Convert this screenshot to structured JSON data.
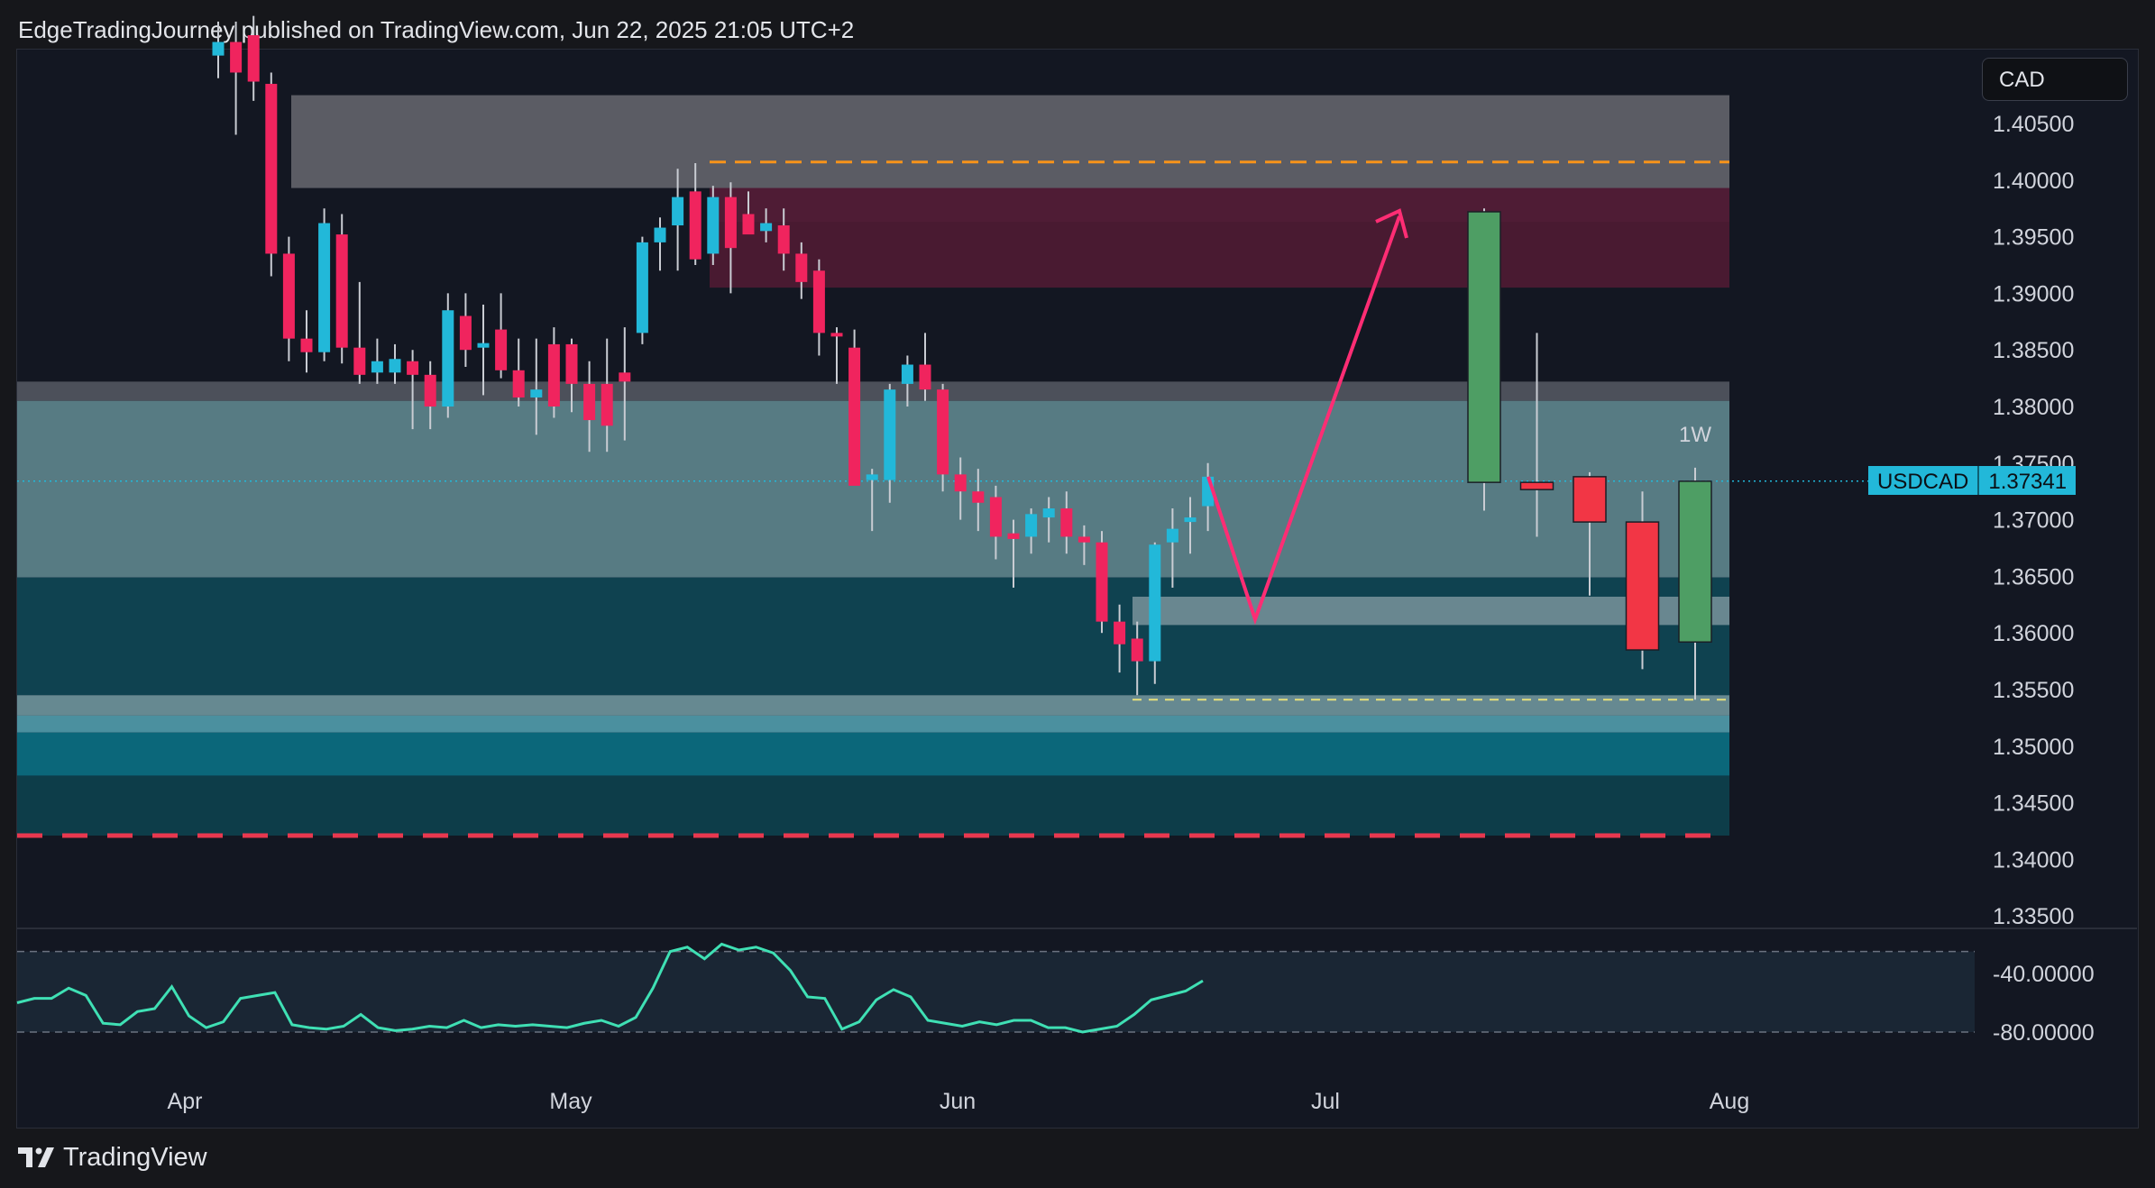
{
  "header": {
    "published": "EdgeTradingJourney published on TradingView.com, Jun 22, 2025 21:05 UTC+2"
  },
  "currency": "CAD",
  "price_label": {
    "symbol": "USDCAD",
    "value": "1.37341"
  },
  "timeframe_label": "1W",
  "footer": {
    "brand": "TradingView"
  },
  "colors": {
    "bull": "#22b8d9",
    "bear": "#f0245e",
    "weekly_bear": "#f23645",
    "weekly_bull": "#4e9e64",
    "arrow": "#ff2d74",
    "dash_orange": "#f7931a",
    "dash_yellow": "#e8e07a",
    "dash_red": "#e8384f"
  },
  "chart_data": [
    {
      "type": "candlestick",
      "symbol": "USDCAD",
      "y_ticks": [
        "1.40500",
        "1.40000",
        "1.39500",
        "1.39000",
        "1.38500",
        "1.38000",
        "1.37500",
        "1.37000",
        "1.36500",
        "1.36000",
        "1.35500",
        "1.35000",
        "1.34500",
        "1.34000",
        "1.33500"
      ],
      "x_ticks": [
        "Apr",
        "May",
        "Jun",
        "Jul",
        "Aug"
      ],
      "ylim": [
        1.3335,
        1.4116
      ],
      "zones": [
        {
          "name": "grey-supply",
          "y1": 1.4075,
          "y2": 1.3993,
          "color": "#5f6068"
        },
        {
          "name": "pink-zone",
          "y1": 1.3993,
          "y2": 1.3963,
          "color": "#8a4a66"
        },
        {
          "name": "maroon-zone",
          "y1": 1.3993,
          "y2": 1.3905,
          "color": "#4c1a33"
        },
        {
          "name": "thin-grey",
          "y1": 1.3822,
          "y2": 1.3805,
          "color": "#4f535e"
        },
        {
          "name": "teal-light",
          "y1": 1.3805,
          "y2": 1.3649,
          "color": "#5b8189"
        },
        {
          "name": "teal-dark",
          "y1": 1.3649,
          "y2": 1.3545,
          "color": "#0f4453"
        },
        {
          "name": "grey-inner",
          "y1": 1.3632,
          "y2": 1.3607,
          "color": "#6f8b93"
        },
        {
          "name": "light-strip",
          "y1": 1.3545,
          "y2": 1.3527,
          "color": "#6a8f98"
        },
        {
          "name": "blue-strip",
          "y1": 1.3527,
          "y2": 1.3512,
          "color": "#4e97a6"
        },
        {
          "name": "cyan-zone",
          "y1": 1.3512,
          "y2": 1.3474,
          "color": "#0b6b80"
        },
        {
          "name": "dark-teal",
          "y1": 1.3474,
          "y2": 1.3421,
          "color": "#0d3f4c"
        }
      ],
      "levels": [
        {
          "name": "orange-dash",
          "y": 1.4016,
          "color": "#f7931a"
        },
        {
          "name": "yellow-dash",
          "y": 1.3541,
          "color": "#e8e07a"
        },
        {
          "name": "red-dash",
          "y": 1.3421,
          "color": "#e8384f"
        },
        {
          "name": "current-price",
          "y": 1.37341,
          "color": "#22b8d9"
        }
      ],
      "daily_candles": [
        [
          1.411,
          1.414,
          1.409,
          1.4122
        ],
        [
          1.4122,
          1.414,
          1.404,
          1.4095
        ],
        [
          1.4128,
          1.4145,
          1.407,
          1.4087
        ],
        [
          1.4085,
          1.4095,
          1.3915,
          1.3935
        ],
        [
          1.3935,
          1.395,
          1.384,
          1.386
        ],
        [
          1.386,
          1.3885,
          1.383,
          1.3848
        ],
        [
          1.3848,
          1.3975,
          1.384,
          1.3962
        ],
        [
          1.3952,
          1.397,
          1.3838,
          1.3852
        ],
        [
          1.3852,
          1.391,
          1.382,
          1.3828
        ],
        [
          1.383,
          1.386,
          1.382,
          1.384
        ],
        [
          1.383,
          1.3855,
          1.382,
          1.3842
        ],
        [
          1.384,
          1.385,
          1.378,
          1.3828
        ],
        [
          1.3828,
          1.384,
          1.378,
          1.38
        ],
        [
          1.38,
          1.39,
          1.379,
          1.3885
        ],
        [
          1.388,
          1.39,
          1.3835,
          1.385
        ],
        [
          1.3852,
          1.389,
          1.381,
          1.3856
        ],
        [
          1.3868,
          1.39,
          1.3825,
          1.3832
        ],
        [
          1.3832,
          1.386,
          1.38,
          1.3808
        ],
        [
          1.3808,
          1.386,
          1.3775,
          1.3815
        ],
        [
          1.3855,
          1.387,
          1.379,
          1.38
        ],
        [
          1.3855,
          1.386,
          1.3795,
          1.382
        ],
        [
          1.382,
          1.384,
          1.376,
          1.3788
        ],
        [
          1.382,
          1.386,
          1.376,
          1.3783
        ],
        [
          1.383,
          1.387,
          1.377,
          1.3822
        ],
        [
          1.3865,
          1.395,
          1.3855,
          1.3945
        ],
        [
          1.3945,
          1.3967,
          1.392,
          1.3958
        ],
        [
          1.396,
          1.401,
          1.392,
          1.3985
        ],
        [
          1.399,
          1.4015,
          1.3925,
          1.393
        ],
        [
          1.3935,
          1.3995,
          1.3925,
          1.3985
        ],
        [
          1.3985,
          1.3998,
          1.39,
          1.394
        ],
        [
          1.397,
          1.399,
          1.3955,
          1.3952
        ],
        [
          1.3955,
          1.3975,
          1.3945,
          1.3962
        ],
        [
          1.396,
          1.3975,
          1.392,
          1.3935
        ],
        [
          1.3935,
          1.3945,
          1.3895,
          1.391
        ],
        [
          1.392,
          1.393,
          1.3845,
          1.3865
        ],
        [
          1.3865,
          1.387,
          1.382,
          1.3862
        ],
        [
          1.3852,
          1.3868,
          1.3775,
          1.373
        ],
        [
          1.3735,
          1.3745,
          1.369,
          1.374
        ],
        [
          1.3735,
          1.382,
          1.3715,
          1.3815
        ],
        [
          1.382,
          1.3845,
          1.38,
          1.3837
        ],
        [
          1.3837,
          1.3865,
          1.3805,
          1.3815
        ],
        [
          1.3815,
          1.382,
          1.3725,
          1.374
        ],
        [
          1.374,
          1.3755,
          1.37,
          1.3725
        ],
        [
          1.3725,
          1.3745,
          1.369,
          1.3715
        ],
        [
          1.372,
          1.373,
          1.3665,
          1.3685
        ],
        [
          1.3688,
          1.37,
          1.364,
          1.3683
        ],
        [
          1.3685,
          1.371,
          1.367,
          1.3705
        ],
        [
          1.3702,
          1.372,
          1.368,
          1.371
        ],
        [
          1.371,
          1.3725,
          1.367,
          1.3685
        ],
        [
          1.3685,
          1.3695,
          1.366,
          1.368
        ],
        [
          1.368,
          1.369,
          1.36,
          1.361
        ],
        [
          1.361,
          1.3625,
          1.3565,
          1.359
        ],
        [
          1.3595,
          1.361,
          1.3545,
          1.3575
        ],
        [
          1.3575,
          1.368,
          1.3555,
          1.3678
        ],
        [
          1.368,
          1.371,
          1.364,
          1.3692
        ],
        [
          1.3698,
          1.372,
          1.367,
          1.3702
        ],
        [
          1.3712,
          1.375,
          1.369,
          1.3738
        ]
      ],
      "weekly_candles": [
        [
          1.3733,
          1.3975,
          1.3708,
          1.3972
        ],
        [
          1.3733,
          1.3865,
          1.3685,
          1.3728
        ],
        [
          1.3738,
          1.3742,
          1.3633,
          1.3698
        ],
        [
          1.3698,
          1.3725,
          1.3568,
          1.3585
        ],
        [
          1.3592,
          1.3746,
          1.3541,
          1.3734
        ]
      ],
      "projection_path": [
        [
          1.3738,
          "start"
        ],
        [
          1.3612,
          "low"
        ],
        [
          1.3968,
          "high"
        ]
      ]
    },
    {
      "type": "line",
      "name": "oscillator",
      "y_ticks": [
        "-40.00000",
        "-80.00000"
      ],
      "ylim": [
        -120,
        -10
      ],
      "values": [
        -60,
        -57,
        -57,
        -50,
        -55,
        -74,
        -75,
        -66,
        -64,
        -49,
        -69,
        -77,
        -73,
        -57,
        -55,
        -53,
        -75,
        -77,
        -78,
        -76,
        -68,
        -77,
        -79,
        -78,
        -76,
        -77,
        -72,
        -77,
        -75,
        -76,
        -75,
        -76,
        -77,
        -74,
        -72,
        -76,
        -70,
        -50,
        -25,
        -22,
        -30,
        -20,
        -24,
        -22,
        -26,
        -38,
        -56,
        -57,
        -78,
        -73,
        -58,
        -51,
        -56,
        -72,
        -74,
        -76,
        -73,
        -75,
        -72,
        -72,
        -77,
        -77,
        -80,
        -78,
        -76,
        -68,
        -58,
        -55,
        -52,
        -45
      ]
    }
  ]
}
